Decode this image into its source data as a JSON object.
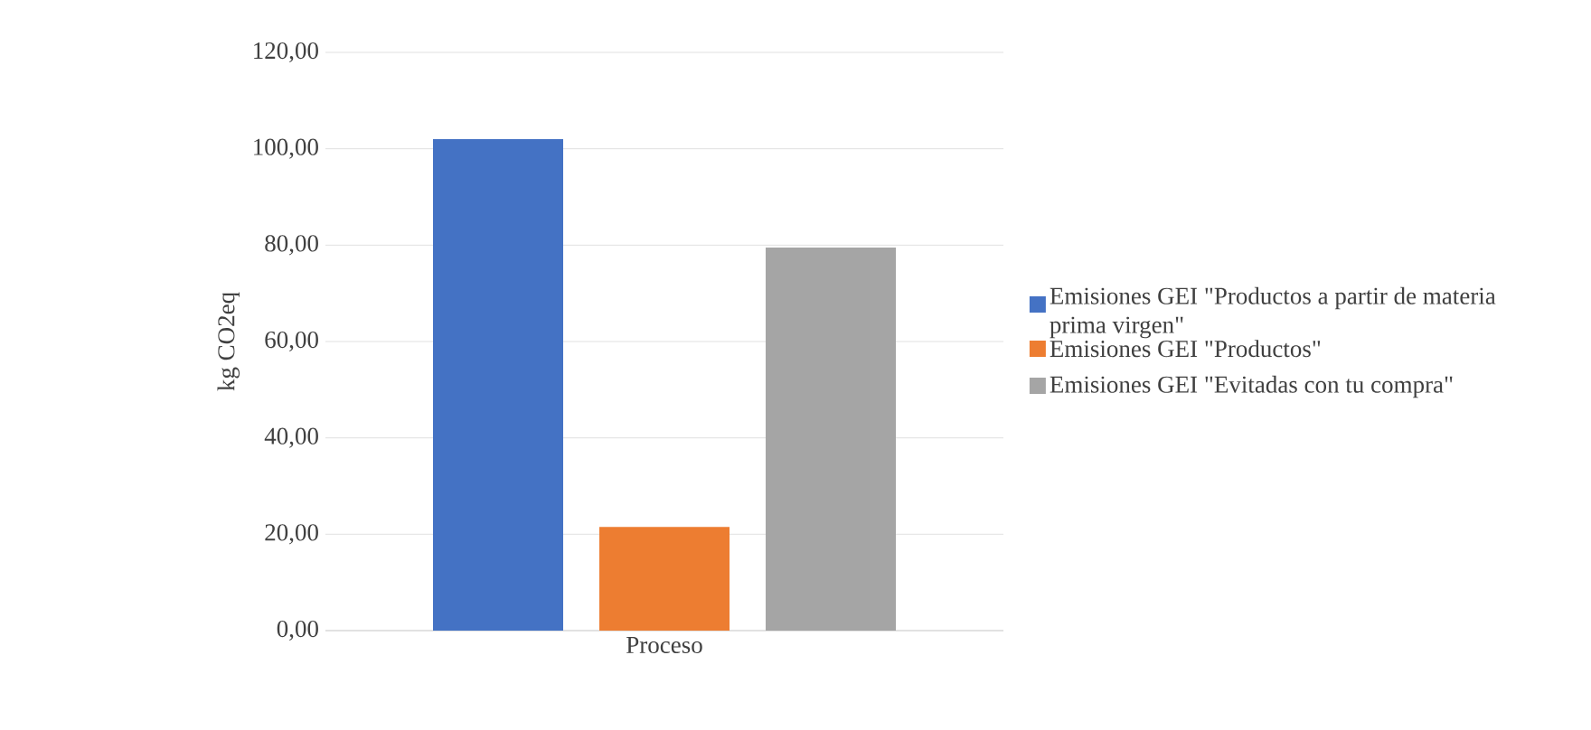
{
  "chart_data": {
    "type": "bar",
    "categories": [
      "Proceso"
    ],
    "ylabel": "kg CO2eq",
    "series": [
      {
        "name": "Emisiones GEI \"Productos a partir de materia prima virgen\"",
        "color": "#4472c4",
        "values": [
          102
        ]
      },
      {
        "name": "Emisiones GEI \"Productos\"",
        "color": "#ed7d31",
        "values": [
          21.5
        ]
      },
      {
        "name": "Emisiones GEI \"Evitadas con tu compra\"",
        "color": "#a5a5a5",
        "values": [
          79.5
        ]
      }
    ],
    "ylim": [
      0,
      120
    ],
    "yticks": [
      {
        "value": 0,
        "label": "0,00"
      },
      {
        "value": 20,
        "label": "20,00"
      },
      {
        "value": 40,
        "label": "40,00"
      },
      {
        "value": 60,
        "label": "60,00"
      },
      {
        "value": 80,
        "label": "80,00"
      },
      {
        "value": 100,
        "label": "100,00"
      },
      {
        "value": 120,
        "label": "120,00"
      }
    ],
    "grid": "y",
    "legend": "right"
  }
}
